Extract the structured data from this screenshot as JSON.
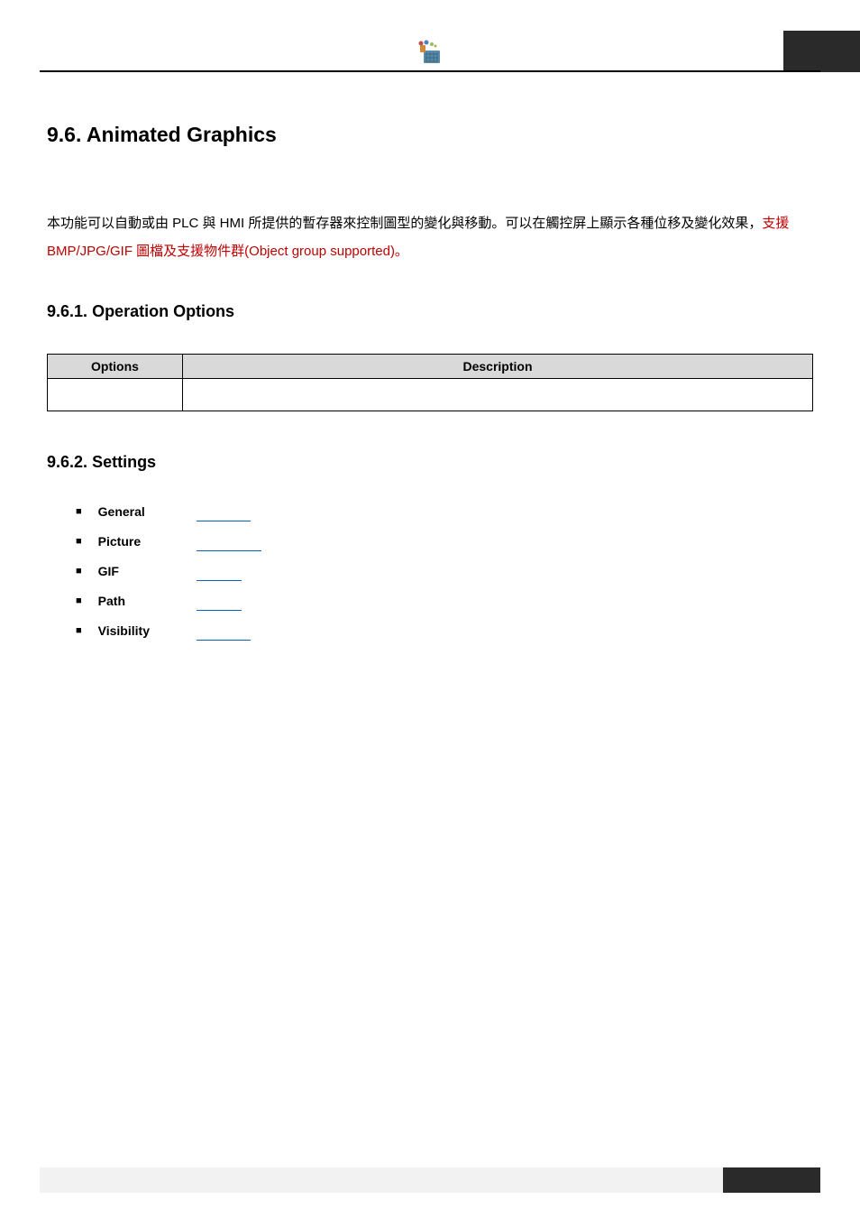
{
  "section": {
    "number": "9.6.",
    "title": "Animated Graphics"
  },
  "intro": {
    "black_part": "本功能可以自動或由 PLC 與 HMI 所提供的暫存器來控制圖型的變化與移動。可以在觸控屏上顯示各種位移及變化效果，",
    "red_part": "支援 BMP/JPG/GIF 圖檔及支援物件群(Object group supported)。"
  },
  "sub1": {
    "number": "9.6.1.",
    "title": "Operation Options",
    "table": {
      "headers": [
        "Options",
        "Description"
      ],
      "rows": [
        [
          "",
          ""
        ]
      ]
    }
  },
  "sub2": {
    "number": "9.6.2.",
    "title": "Settings",
    "items": [
      {
        "label": "General",
        "line_class": "link-line"
      },
      {
        "label": "Picture",
        "line_class": "link-line med"
      },
      {
        "label": "GIF",
        "line_class": "link-line short"
      },
      {
        "label": "Path",
        "line_class": "link-line short"
      },
      {
        "label": "Visibility",
        "line_class": "link-line"
      }
    ]
  },
  "icon": {
    "colors": {
      "pad": "#5b8aa8",
      "grid": "#3a6b85",
      "handle": "#d08a3a",
      "red": "#c0504d",
      "blue": "#4f81bd",
      "green": "#9bbb59"
    }
  }
}
